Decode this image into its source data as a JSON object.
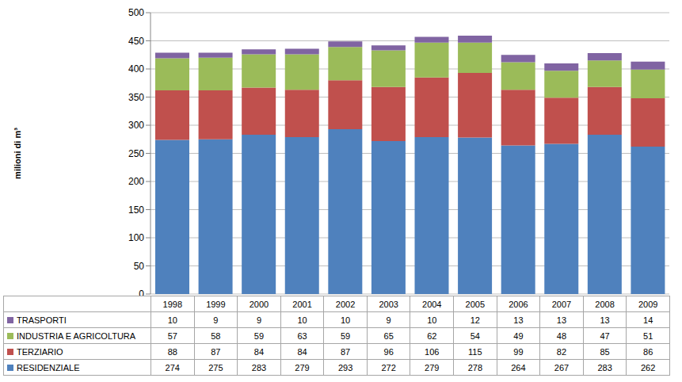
{
  "chart_data": {
    "type": "bar",
    "stacked": true,
    "y_label": "milioni di m³",
    "categories": [
      "1998",
      "1999",
      "2000",
      "2001",
      "2002",
      "2003",
      "2004",
      "2005",
      "2006",
      "2007",
      "2008",
      "2009"
    ],
    "series": [
      {
        "name": "RESIDENZIALE",
        "color": "#4f81bd",
        "values": [
          274,
          275,
          283,
          279,
          293,
          272,
          279,
          278,
          264,
          267,
          283,
          262
        ]
      },
      {
        "name": "TERZIARIO",
        "color": "#c0504d",
        "values": [
          88,
          87,
          84,
          84,
          87,
          96,
          106,
          115,
          99,
          82,
          85,
          86
        ]
      },
      {
        "name": "INDUSTRIA E AGRICOLTURA",
        "color": "#9bbb59",
        "values": [
          57,
          58,
          59,
          63,
          59,
          65,
          62,
          54,
          49,
          48,
          47,
          51
        ]
      },
      {
        "name": "TRASPORTI",
        "color": "#8064a2",
        "values": [
          10,
          9,
          9,
          10,
          10,
          9,
          10,
          12,
          13,
          13,
          13,
          14
        ]
      }
    ],
    "ylim": [
      0,
      500
    ],
    "yticks": [
      0,
      50,
      100,
      150,
      200,
      250,
      300,
      350,
      400,
      450,
      500
    ],
    "grid": true
  }
}
